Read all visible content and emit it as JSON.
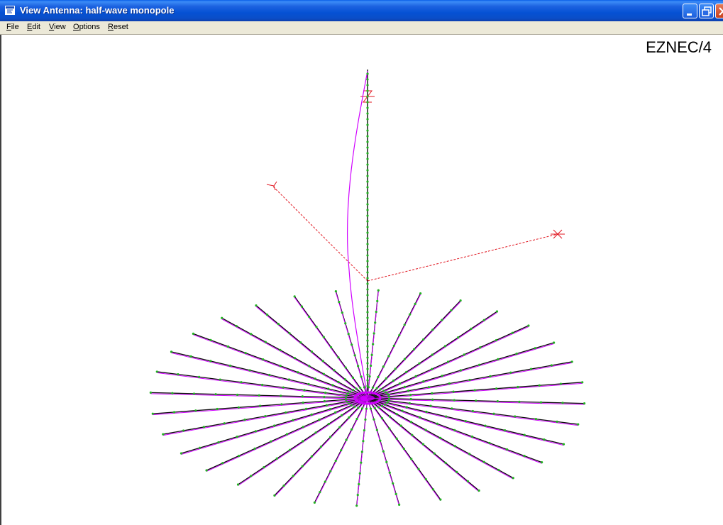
{
  "window": {
    "title": "View Antenna: half-wave monopole"
  },
  "menu": [
    {
      "label": "File",
      "accel": "F",
      "rest": "ile"
    },
    {
      "label": "Edit",
      "accel": "E",
      "rest": "dit"
    },
    {
      "label": "View",
      "accel": "V",
      "rest": "iew"
    },
    {
      "label": "Options",
      "accel": "O",
      "rest": "ptions"
    },
    {
      "label": "Reset",
      "accel": "R",
      "rest": "eset"
    }
  ],
  "brand": "EZNEC/4",
  "axes": {
    "x": "X",
    "y": "Y",
    "z": "Z"
  },
  "colors": {
    "wire": "#0a0a0a",
    "current": "#d000ff",
    "segment": "#22b222",
    "axis": "#e0141e",
    "title_bar": "#0551d4"
  },
  "antenna": {
    "radial_count": 32,
    "segments_per_radial": 10
  }
}
